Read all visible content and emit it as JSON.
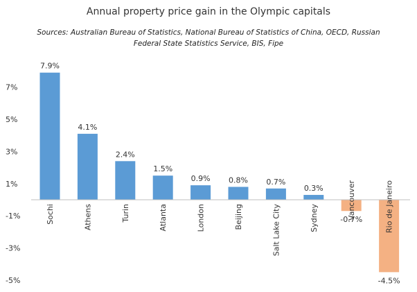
{
  "chart_data": {
    "type": "bar",
    "title": "Annual property price gain in the Olympic capitals",
    "subtitle": "Sources: Australian Bureau of Statistics, National Bureau of Statistics of China, OECD, Russian Federal State Statistics Service, BIS, Fipe",
    "categories": [
      "Sochi",
      "Athens",
      "Turin",
      "Atlanta",
      "London",
      "Beijing",
      "Salt Lake City",
      "Sydney",
      "Vancouver",
      "Rio de Janeiro"
    ],
    "values": [
      7.9,
      4.1,
      2.4,
      1.5,
      0.9,
      0.8,
      0.7,
      0.3,
      -0.7,
      -4.5
    ],
    "data_labels": [
      "7.9%",
      "4.1%",
      "2.4%",
      "1.5%",
      "0.9%",
      "0.8%",
      "0.7%",
      "0.3%",
      "-0.7%",
      "-4.5%"
    ],
    "yticks": [
      7,
      5,
      3,
      1,
      -1,
      -3,
      -5
    ],
    "ytick_labels": [
      "7%",
      "5%",
      "3%",
      "1%",
      "-1%",
      "-3%",
      "-5%"
    ],
    "ylim": [
      -5,
      8.5
    ],
    "xlabel": "",
    "ylabel": "",
    "grid": false,
    "legend": "none",
    "colors": {
      "positive": "#5B9BD5",
      "negative": "#F4B183",
      "axis": "#BFBFBF"
    }
  }
}
